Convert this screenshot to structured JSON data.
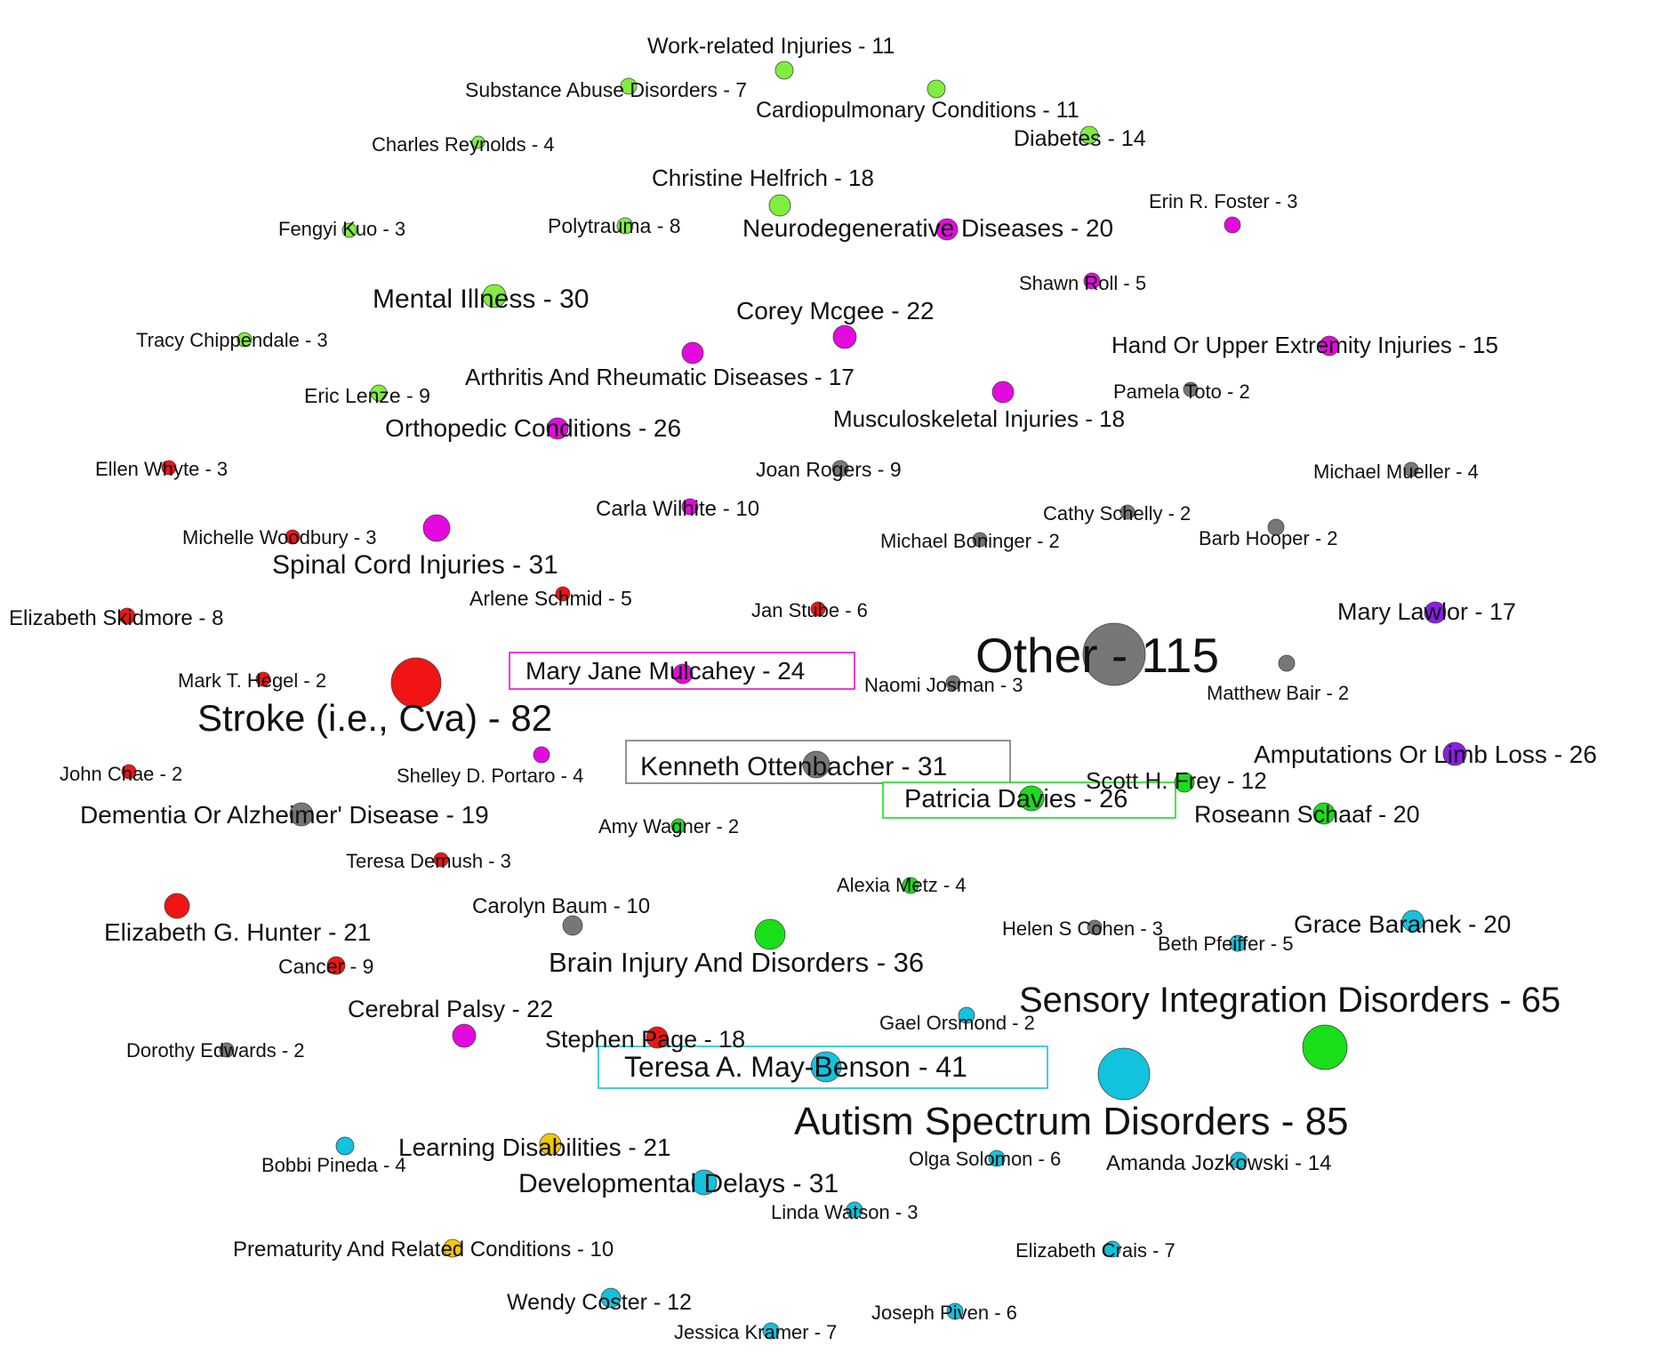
{
  "colors": {
    "lime": "#80ee3e",
    "magenta": "#e40adf",
    "grey": "#777777",
    "red": "#f01414",
    "purple": "#8a1ee6",
    "green": "#18df18",
    "cyan": "#12c3dd",
    "yellow": "#f5c800"
  },
  "nodes": [
    {
      "id": "n1",
      "label": "Work-related Injuries - 11",
      "group": "lime"
    },
    {
      "id": "n2",
      "label": "Substance Abuse Disorders - 7",
      "group": "lime"
    },
    {
      "id": "n3",
      "label": "Cardiopulmonary Conditions  - 11",
      "group": "lime"
    },
    {
      "id": "n4",
      "label": "Charles Reynolds - 4",
      "group": "lime"
    },
    {
      "id": "n5",
      "label": "Diabetes - 14",
      "group": "lime"
    },
    {
      "id": "n6",
      "label": "Christine Helfrich - 18",
      "group": "lime"
    },
    {
      "id": "n7",
      "label": "Erin R. Foster - 3",
      "group": "magenta"
    },
    {
      "id": "n8",
      "label": "Fengyi Kuo - 3",
      "group": "lime"
    },
    {
      "id": "n9",
      "label": "Polytrauma - 8",
      "group": "lime"
    },
    {
      "id": "n10",
      "label": "Neurodegenerative Diseases - 20",
      "group": "magenta"
    },
    {
      "id": "n11",
      "label": "Shawn Roll - 5",
      "group": "magenta"
    },
    {
      "id": "n12",
      "label": "Mental Illness - 30",
      "group": "lime"
    },
    {
      "id": "n13",
      "label": "Corey Mcgee - 22",
      "group": "magenta"
    },
    {
      "id": "n14",
      "label": "Tracy Chippendale - 3",
      "group": "lime"
    },
    {
      "id": "n15",
      "label": "Hand Or Upper Extremity Injuries - 15",
      "group": "magenta"
    },
    {
      "id": "n16",
      "label": "Arthritis And Rheumatic Diseases - 17",
      "group": "magenta"
    },
    {
      "id": "n17",
      "label": "Pamela Toto - 2",
      "group": "grey"
    },
    {
      "id": "n18",
      "label": "Eric Lenze - 9",
      "group": "lime"
    },
    {
      "id": "n19",
      "label": "Musculoskeletal Injuries - 18",
      "group": "magenta"
    },
    {
      "id": "n20",
      "label": "Orthopedic Conditions - 26",
      "group": "magenta"
    },
    {
      "id": "n21",
      "label": "Ellen Whyte - 3",
      "group": "red"
    },
    {
      "id": "n22",
      "label": "Joan Rogers - 9",
      "group": "grey"
    },
    {
      "id": "n23",
      "label": "Michael Mueller - 4",
      "group": "grey"
    },
    {
      "id": "n24",
      "label": "Carla Wilhite - 10",
      "group": "magenta"
    },
    {
      "id": "n25",
      "label": "Cathy Schelly - 2",
      "group": "grey"
    },
    {
      "id": "n26",
      "label": "Michelle Woodbury - 3",
      "group": "red"
    },
    {
      "id": "n27",
      "label": "Michael Boninger - 2",
      "group": "grey"
    },
    {
      "id": "n28",
      "label": "Barb Hooper - 2",
      "group": "grey"
    },
    {
      "id": "n29",
      "label": "Spinal Cord Injuries - 31",
      "group": "magenta"
    },
    {
      "id": "n30",
      "label": "Arlene Schmid - 5",
      "group": "red"
    },
    {
      "id": "n31",
      "label": "Elizabeth Skidmore - 8",
      "group": "red"
    },
    {
      "id": "n32",
      "label": "Jan Stube - 6",
      "group": "red"
    },
    {
      "id": "n33",
      "label": "Mary Lawlor - 17",
      "group": "purple"
    },
    {
      "id": "n34",
      "label": "Other - 115",
      "group": "grey"
    },
    {
      "id": "n35",
      "label": "Mary Jane Mulcahey - 24",
      "group": "magenta",
      "boxed": true
    },
    {
      "id": "n36",
      "label": "Mark T. Hegel - 2",
      "group": "red"
    },
    {
      "id": "n37",
      "label": "Naomi Josman - 3",
      "group": "grey"
    },
    {
      "id": "n38",
      "label": "Matthew Bair - 2",
      "group": "grey"
    },
    {
      "id": "n39",
      "label": "Stroke (i.e., Cva) - 82",
      "group": "red"
    },
    {
      "id": "n40",
      "label": "Kenneth Ottenbacher - 31",
      "group": "grey",
      "boxed": true
    },
    {
      "id": "n41",
      "label": "Amputations Or Limb Loss - 26",
      "group": "purple"
    },
    {
      "id": "n42",
      "label": "John Chae - 2",
      "group": "red"
    },
    {
      "id": "n43",
      "label": "Shelley D. Portaro - 4",
      "group": "magenta"
    },
    {
      "id": "n44",
      "label": "Scott H. Frey - 12",
      "group": "green"
    },
    {
      "id": "n45",
      "label": "Patricia Davies - 26",
      "group": "green",
      "boxed": true
    },
    {
      "id": "n46",
      "label": "Dementia Or Alzheimer' Disease - 19",
      "group": "grey"
    },
    {
      "id": "n47",
      "label": "Roseann Schaaf - 20",
      "group": "green"
    },
    {
      "id": "n48",
      "label": "Amy Wagner - 2",
      "group": "green"
    },
    {
      "id": "n49",
      "label": "Teresa Demush - 3",
      "group": "red"
    },
    {
      "id": "n50",
      "label": "Alexia Metz - 4",
      "group": "green"
    },
    {
      "id": "n51",
      "label": "Carolyn Baum - 10",
      "group": "grey"
    },
    {
      "id": "n52",
      "label": "Elizabeth G. Hunter - 21",
      "group": "red"
    },
    {
      "id": "n53",
      "label": "Helen S Cohen - 3",
      "group": "grey"
    },
    {
      "id": "n54",
      "label": "Beth Pfeiffer - 5",
      "group": "cyan"
    },
    {
      "id": "n55",
      "label": "Grace Baranek - 20",
      "group": "cyan"
    },
    {
      "id": "n56",
      "label": "Brain Injury And Disorders - 36",
      "group": "green"
    },
    {
      "id": "n57",
      "label": "Cancer - 9",
      "group": "red"
    },
    {
      "id": "n58",
      "label": "Sensory Integration Disorders - 65",
      "group": "green"
    },
    {
      "id": "n59",
      "label": "Cerebral Palsy - 22",
      "group": "magenta"
    },
    {
      "id": "n60",
      "label": "Gael Orsmond - 2",
      "group": "cyan"
    },
    {
      "id": "n61",
      "label": "Stephen Page - 18",
      "group": "red"
    },
    {
      "id": "n62",
      "label": "Dorothy Edwards - 2",
      "group": "grey"
    },
    {
      "id": "n63",
      "label": "Teresa A. May-Benson - 41",
      "group": "cyan",
      "boxed": true
    },
    {
      "id": "n64",
      "label": "Autism Spectrum Disorders - 85",
      "group": "cyan"
    },
    {
      "id": "n65",
      "label": "Learning Disabilities - 21",
      "group": "cyan"
    },
    {
      "id": "n66",
      "label": "Bobbi Pineda - 4",
      "group": "yellow"
    },
    {
      "id": "n67",
      "label": "Olga Solomon - 6",
      "group": "cyan"
    },
    {
      "id": "n68",
      "label": "Amanda Jozkowski - 14",
      "group": "cyan"
    },
    {
      "id": "n69",
      "label": "Developmental Delays - 31",
      "group": "cyan"
    },
    {
      "id": "n70",
      "label": "Linda Watson - 3",
      "group": "cyan"
    },
    {
      "id": "n71",
      "label": "Prematurity And Related Conditions - 10",
      "group": "yellow"
    },
    {
      "id": "n72",
      "label": "Elizabeth Crais - 7",
      "group": "cyan"
    },
    {
      "id": "n73",
      "label": "Wendy Coster - 12",
      "group": "cyan"
    },
    {
      "id": "n74",
      "label": "Joseph Piven - 6",
      "group": "cyan"
    },
    {
      "id": "n75",
      "label": "Jessica Kramer - 7",
      "group": "cyan"
    }
  ]
}
